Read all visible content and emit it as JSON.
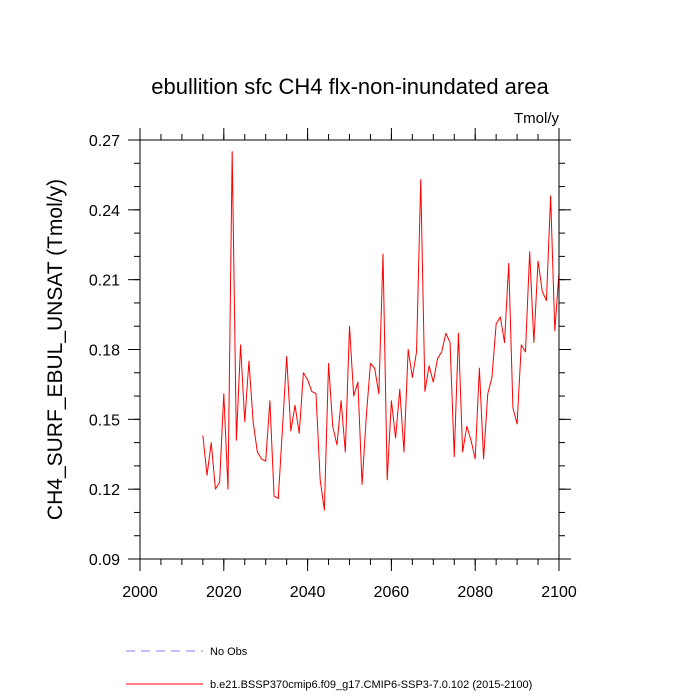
{
  "chart_data": {
    "type": "line",
    "title": "ebullition sfc CH4 flx-non-inundated area",
    "units_label": "Tmol/y",
    "xlabel": "",
    "ylabel": "CH4_SURF_EBUL_UNSAT  (Tmol/y)",
    "xlim": [
      2000,
      2100
    ],
    "ylim": [
      0.09,
      0.27
    ],
    "x_ticks": [
      2000,
      2020,
      2040,
      2060,
      2080,
      2100
    ],
    "y_ticks": [
      0.09,
      0.12,
      0.15,
      0.18,
      0.21,
      0.24,
      0.27
    ],
    "x_tick_labels": [
      "2000",
      "2020",
      "2040",
      "2060",
      "2080",
      "2100"
    ],
    "y_tick_labels": [
      "0.09",
      "0.12",
      "0.15",
      "0.18",
      "0.21",
      "0.24",
      "0.27"
    ],
    "grid": false,
    "legend_position": "bottom",
    "series": [
      {
        "name": "No Obs",
        "color": "#8080ff",
        "dash": "dashed",
        "x": [],
        "y": []
      },
      {
        "name": "b.e21.BSSP370cmip6.f09_g17.CMIP6-SSP3-7.0.102 (2015-2100)",
        "color": "#ff0000",
        "dash": "solid",
        "x": [
          2015,
          2016,
          2017,
          2018,
          2019,
          2020,
          2021,
          2022,
          2023,
          2024,
          2025,
          2026,
          2027,
          2028,
          2029,
          2030,
          2031,
          2032,
          2033,
          2034,
          2035,
          2036,
          2037,
          2038,
          2039,
          2040,
          2041,
          2042,
          2043,
          2044,
          2045,
          2046,
          2047,
          2048,
          2049,
          2050,
          2051,
          2052,
          2053,
          2054,
          2055,
          2056,
          2057,
          2058,
          2059,
          2060,
          2061,
          2062,
          2063,
          2064,
          2065,
          2066,
          2067,
          2068,
          2069,
          2070,
          2071,
          2072,
          2073,
          2074,
          2075,
          2076,
          2077,
          2078,
          2079,
          2080,
          2081,
          2082,
          2083,
          2084,
          2085,
          2086,
          2087,
          2088,
          2089,
          2090,
          2091,
          2092,
          2093,
          2094,
          2095,
          2096,
          2097,
          2098,
          2099,
          2100
        ],
        "y": [
          0.143,
          0.126,
          0.14,
          0.12,
          0.123,
          0.161,
          0.12,
          0.265,
          0.141,
          0.182,
          0.149,
          0.175,
          0.149,
          0.136,
          0.133,
          0.132,
          0.158,
          0.117,
          0.116,
          0.146,
          0.177,
          0.145,
          0.156,
          0.144,
          0.17,
          0.167,
          0.162,
          0.161,
          0.124,
          0.111,
          0.174,
          0.147,
          0.139,
          0.158,
          0.136,
          0.19,
          0.16,
          0.166,
          0.122,
          0.151,
          0.174,
          0.172,
          0.161,
          0.221,
          0.124,
          0.158,
          0.142,
          0.163,
          0.136,
          0.18,
          0.168,
          0.179,
          0.253,
          0.162,
          0.173,
          0.166,
          0.176,
          0.179,
          0.187,
          0.183,
          0.134,
          0.187,
          0.136,
          0.147,
          0.141,
          0.133,
          0.172,
          0.133,
          0.161,
          0.168,
          0.191,
          0.194,
          0.183,
          0.217,
          0.155,
          0.148,
          0.182,
          0.179,
          0.222,
          0.183,
          0.218,
          0.205,
          0.201,
          0.246,
          0.188,
          0.213
        ]
      }
    ]
  }
}
